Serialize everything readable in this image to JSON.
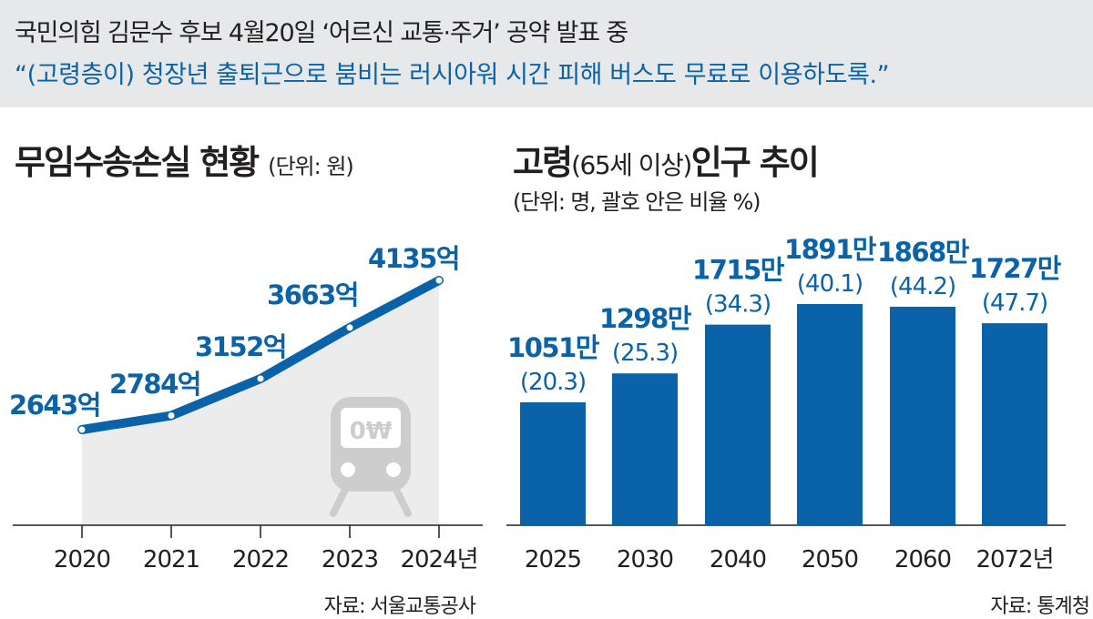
{
  "banner": {
    "line1": "국민의힘 김문수 후보 4월20일 ‘어르신 교통·주거’ 공약 발표 중",
    "line2": "“(고령층이) 청장년 출퇴근으로 붐비는 러시아워 시간 피해 버스도 무료로 이용하도록.”"
  },
  "chart_data": [
    {
      "type": "area",
      "title": "무임수송손실 현황",
      "unit_label": "(단위: 원)",
      "x": [
        "2020",
        "2021",
        "2022",
        "2023",
        "2024년"
      ],
      "values": [
        2643,
        2784,
        3152,
        3663,
        4135
      ],
      "value_labels": [
        "2643억",
        "2784억",
        "3152억",
        "3663억",
        "4135억"
      ],
      "ylim": [
        2000,
        4500
      ],
      "source": "자료: 서울교통공사",
      "colors": {
        "line": "#0a62a8",
        "area": "#ececec",
        "icon": "#cdcdcd"
      },
      "icon": "subway-train-icon",
      "icon_text": "0₩"
    },
    {
      "type": "bar",
      "title": "고령",
      "title_paren": "(65세 이상)",
      "title_suffix": "인구 추이",
      "unit_label": "(단위: 명, 괄호 안은 비율 %)",
      "categories": [
        "2025",
        "2030",
        "2040",
        "2050",
        "2060",
        "2072년"
      ],
      "values": [
        1051,
        1298,
        1715,
        1891,
        1868,
        1727
      ],
      "value_labels": [
        "1051만",
        "1298만",
        "1715만",
        "1891만",
        "1868만",
        "1727만"
      ],
      "ratios": [
        "(20.3)",
        "(25.3)",
        "(34.3)",
        "(40.1)",
        "(44.2)",
        "(47.7)"
      ],
      "ylim": [
        0,
        2050
      ],
      "source": "자료: 통계청",
      "colors": {
        "bar": "#0a62a8",
        "label": "#0a62a8"
      }
    }
  ]
}
